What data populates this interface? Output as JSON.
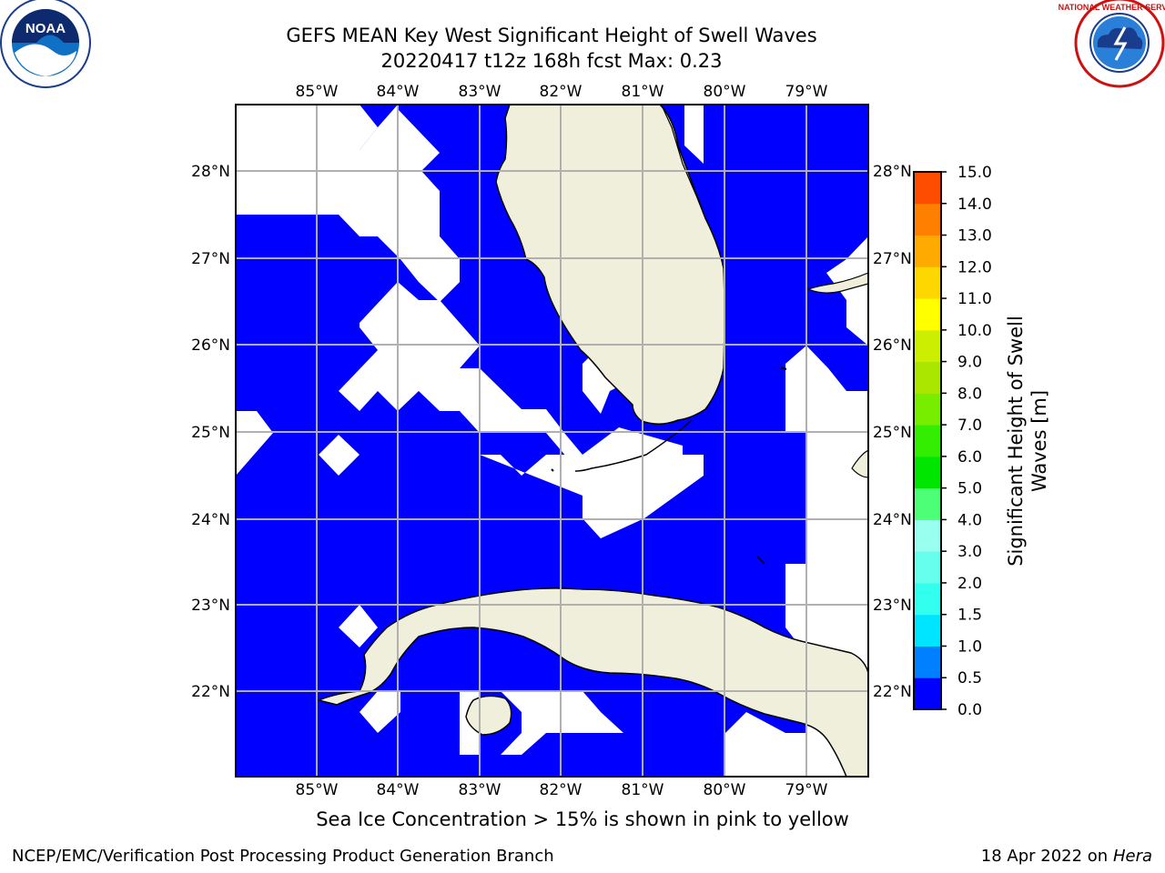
{
  "header": {
    "title_line1": "GEFS MEAN Key West Significant Height of Swell Waves",
    "title_line2": "20220417 t12z 168h fcst   Max: 0.23"
  },
  "logos": {
    "left": {
      "icon": "noaa-logo",
      "text": "NOAA",
      "ring_text": "NATIONAL OCEANIC AND ATMOSPHERIC ADMINISTRATION · U.S. DEPARTMENT OF COMMERCE"
    },
    "right": {
      "icon": "nws-logo",
      "ring_text": "NATIONAL WEATHER SERVICE"
    }
  },
  "map": {
    "lon_labels": [
      "85°W",
      "84°W",
      "83°W",
      "82°W",
      "81°W",
      "80°W",
      "79°W"
    ],
    "lat_labels": [
      "28°N",
      "27°N",
      "26°N",
      "25°N",
      "24°N",
      "23°N",
      "22°N"
    ],
    "colors": {
      "ocean_low": "#0000ff",
      "land": "#efefdc",
      "no_data": "#ffffff",
      "grid": "#b0b0b0"
    }
  },
  "colorbar": {
    "label": "Significant Height of Swell Waves [m]",
    "label_line1": "Significant Height of Swell",
    "label_line2": "Waves [m]",
    "tick_labels": [
      "0.0",
      "0.5",
      "1.0",
      "1.5",
      "2.0",
      "3.0",
      "4.0",
      "5.0",
      "6.0",
      "7.0",
      "8.0",
      "9.0",
      "10.0",
      "11.0",
      "12.0",
      "13.0",
      "14.0",
      "15.0"
    ],
    "colors": [
      "#0000ff",
      "#0080ff",
      "#00e5ff",
      "#33ffef",
      "#66ffee",
      "#99ffee",
      "#4dff77",
      "#00e600",
      "#33ee00",
      "#77ee00",
      "#aae600",
      "#ccee00",
      "#ffff00",
      "#ffd700",
      "#ffaa00",
      "#ff8000",
      "#ff4d00",
      "#ff2000",
      "#ff0000"
    ]
  },
  "footer": {
    "caption": "Sea Ice Concentration > 15% is shown in pink to yellow",
    "credit": "NCEP/EMC/Verification Post Processing Product Generation Branch",
    "date_prefix": "18 Apr 2022 on ",
    "date_host": "Hera"
  }
}
